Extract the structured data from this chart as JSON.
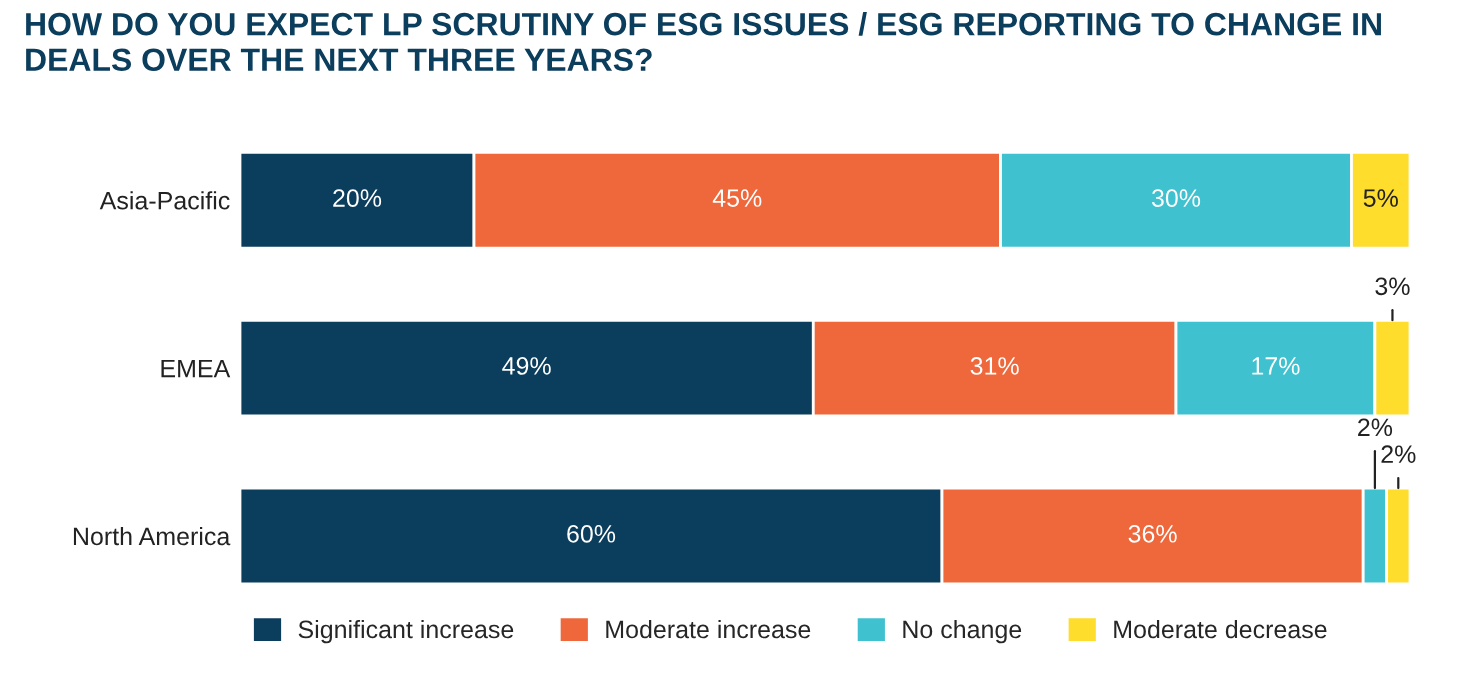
{
  "chart_data": {
    "type": "bar",
    "orientation": "horizontal",
    "stacked": true,
    "legend": "bottom",
    "tick_labels": "y",
    "title": "HOW DO YOU EXPECT LP SCRUTINY OF ESG ISSUES / ESG REPORTING TO CHANGE IN\nDEALS OVER THE NEXT THREE YEARS?",
    "categories": [
      "Asia-Pacific",
      "EMEA",
      "North America"
    ],
    "series": [
      {
        "name": "Significant increase",
        "color": "#0b3d5c",
        "values": [
          20,
          49,
          60
        ],
        "value_labels": [
          "20%",
          "49%",
          "60%"
        ]
      },
      {
        "name": "Moderate increase",
        "color": "#ef683b",
        "values": [
          45,
          31,
          36
        ],
        "value_labels": [
          "45%",
          "31%",
          "36%"
        ]
      },
      {
        "name": "No change",
        "color": "#40c1cf",
        "values": [
          30,
          17,
          2
        ],
        "value_labels": [
          "30%",
          "17%",
          "2%"
        ]
      },
      {
        "name": "Moderate decrease",
        "color": "#fedd2d",
        "values": [
          5,
          3,
          2
        ],
        "value_labels": [
          "5%",
          "3%",
          "2%"
        ]
      }
    ]
  }
}
